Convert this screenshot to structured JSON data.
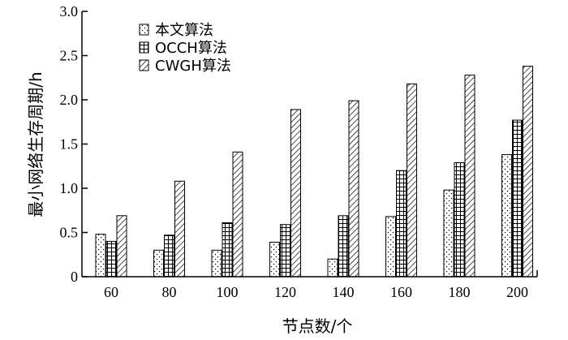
{
  "chart_data": {
    "type": "bar",
    "xlabel": "节点数/个",
    "ylabel": "最小网络生存周期/h",
    "categories": [
      "60",
      "80",
      "100",
      "120",
      "140",
      "160",
      "180",
      "200"
    ],
    "ylim": [
      0,
      3.0
    ],
    "yticks": [
      "0",
      "0.5",
      "1.0",
      "1.5",
      "2.0",
      "2.5",
      "3.0"
    ],
    "legend_position": "top-left",
    "series": [
      {
        "name": "本文算法",
        "pattern": "dots",
        "values": [
          0.48,
          0.3,
          0.3,
          0.39,
          0.2,
          0.68,
          0.98,
          1.38
        ]
      },
      {
        "name": "OCCH算法",
        "pattern": "grid",
        "values": [
          0.4,
          0.47,
          0.61,
          0.59,
          0.69,
          1.2,
          1.29,
          1.77
        ]
      },
      {
        "name": "CWGH算法",
        "pattern": "diagonal",
        "values": [
          0.69,
          1.08,
          1.41,
          1.89,
          1.99,
          2.18,
          2.28,
          2.38
        ]
      }
    ]
  }
}
